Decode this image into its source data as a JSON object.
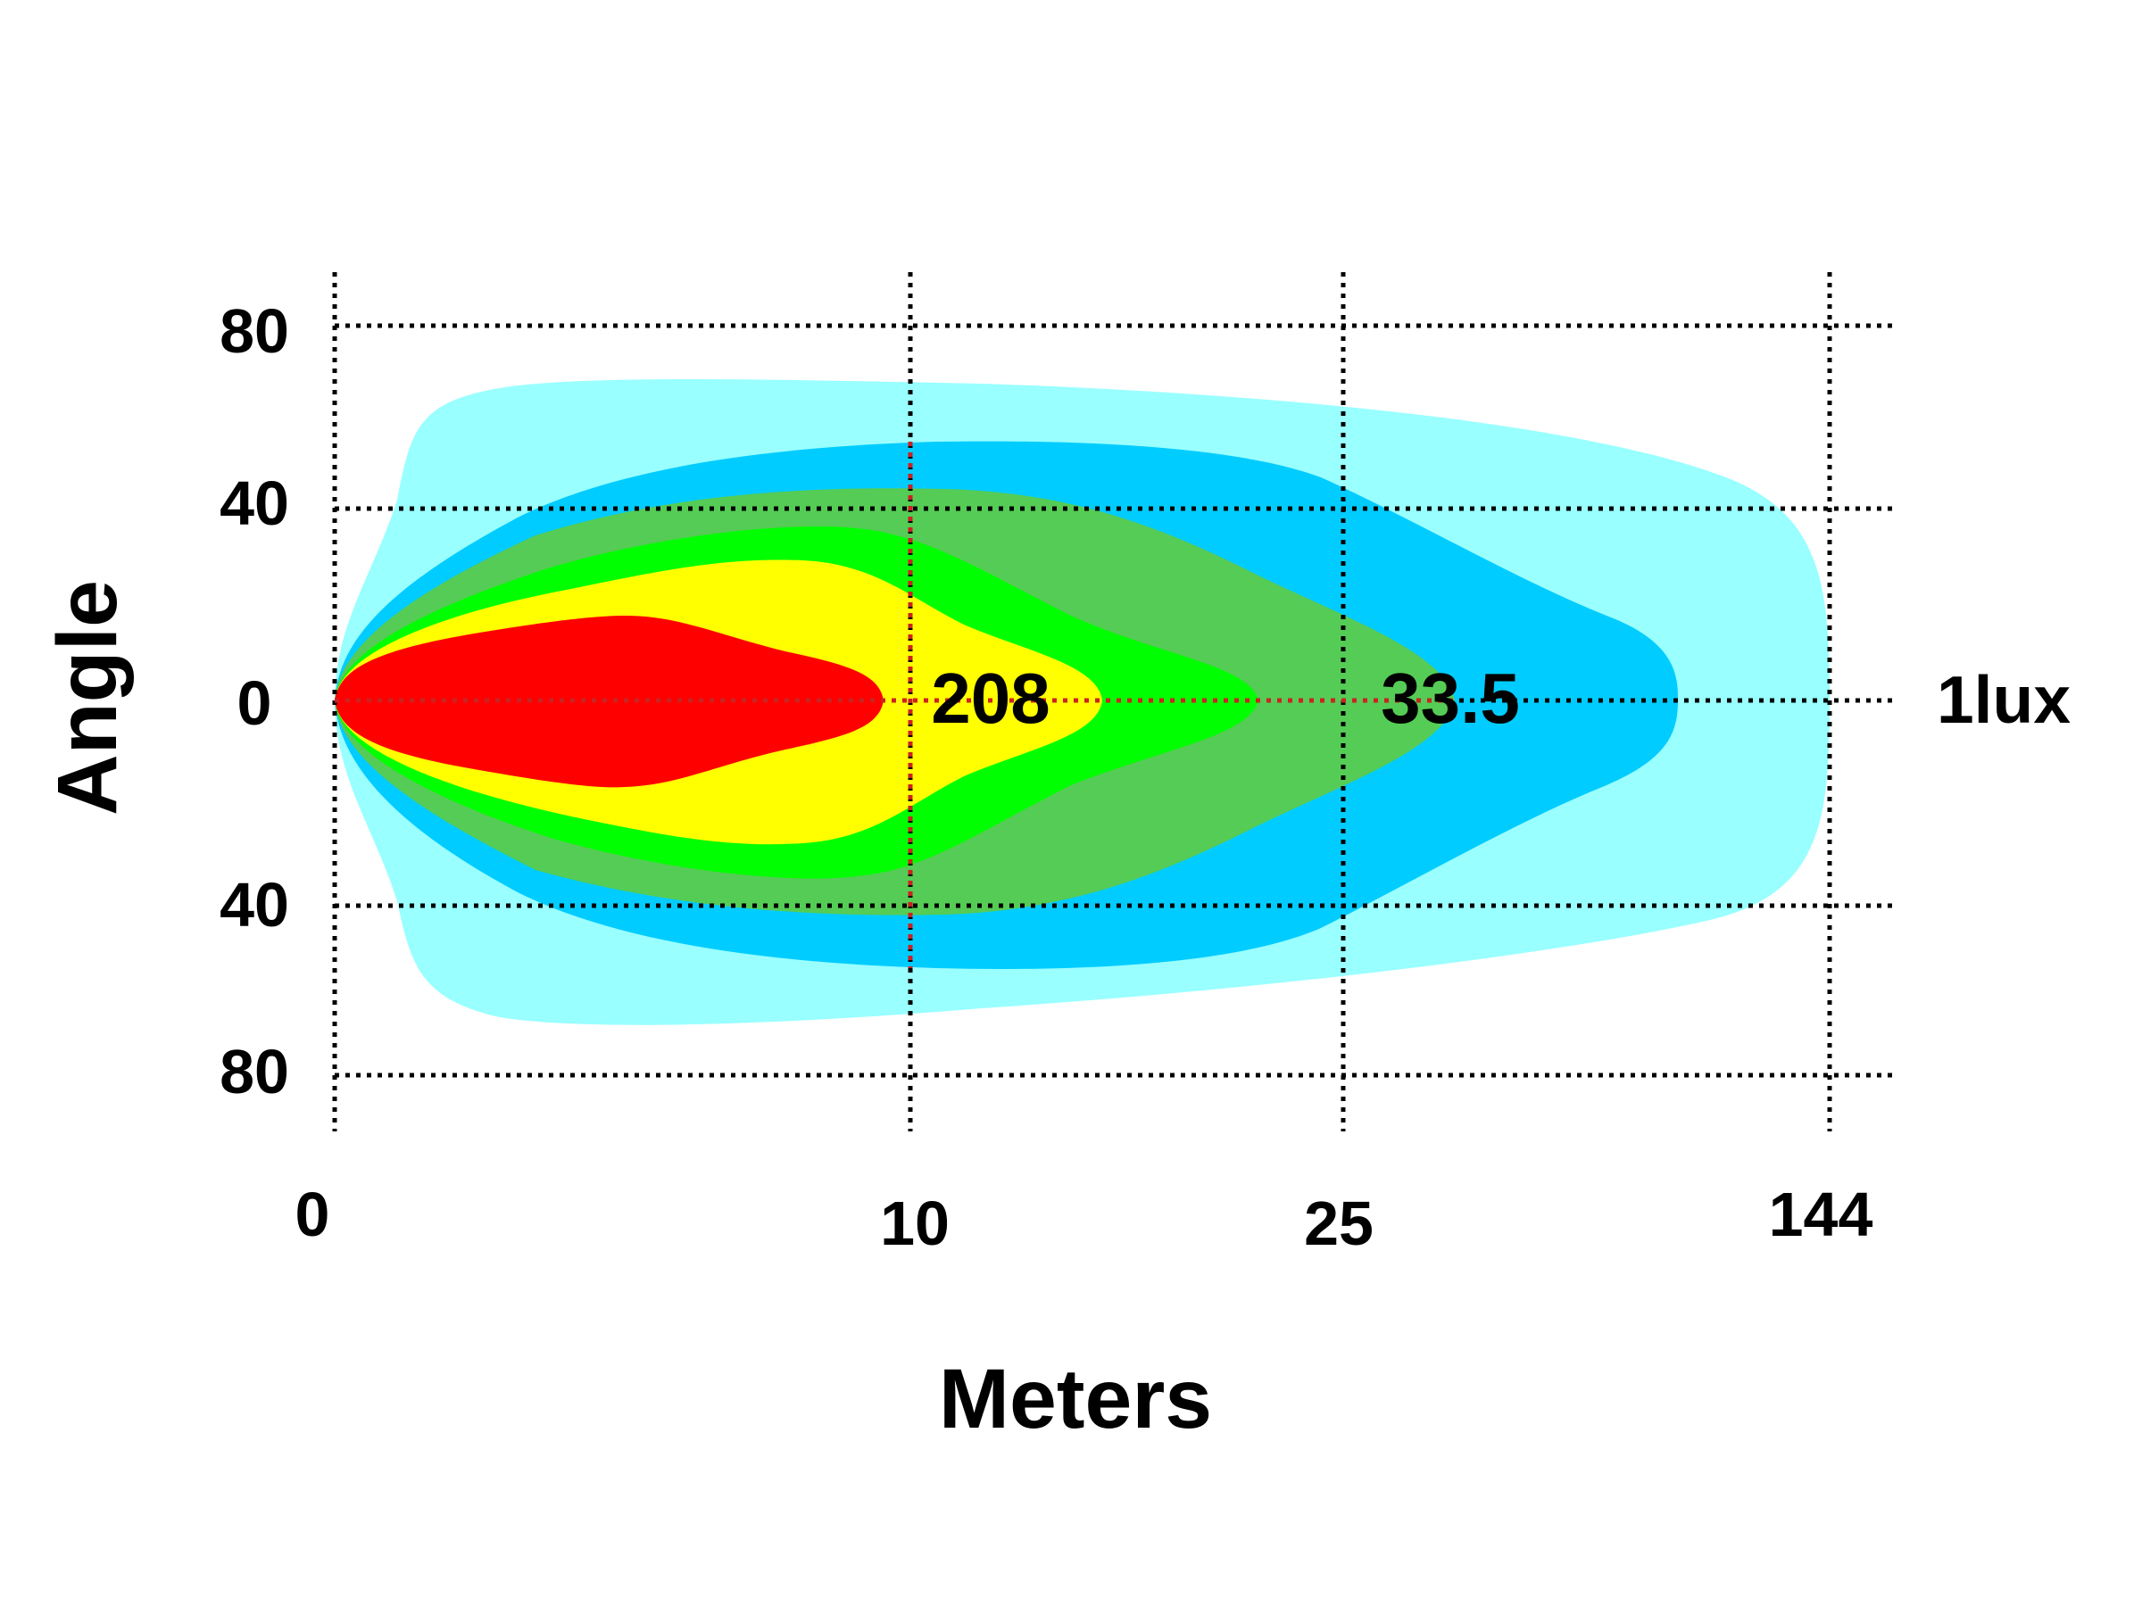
{
  "chart_data": {
    "type": "area",
    "title": "",
    "xlabel": "Meters",
    "ylabel": "Angle",
    "x_ticks": [
      "0",
      "10",
      "25",
      "144"
    ],
    "y_ticks": [
      "80",
      "40",
      "0",
      "40",
      "80"
    ],
    "grid": true,
    "isolux_labels": [
      {
        "text": "208",
        "distance": 10
      },
      {
        "text": "33.5",
        "distance": 25
      },
      {
        "text": "1lux",
        "distance": 144
      }
    ],
    "zones": [
      {
        "color": "#99ffff",
        "reach_m": 144,
        "half_width_deg": 70
      },
      {
        "color": "#00ccff",
        "reach_m": 50,
        "half_width_deg": 55
      },
      {
        "color": "#55cc55",
        "reach_m": 30,
        "half_width_deg": 45
      },
      {
        "color": "#00ff00",
        "reach_m": 20,
        "half_width_deg": 36
      },
      {
        "color": "#ffff00",
        "reach_m": 13,
        "half_width_deg": 28
      },
      {
        "color": "#ff0000",
        "reach_m": 9,
        "half_width_deg": 18
      }
    ]
  }
}
